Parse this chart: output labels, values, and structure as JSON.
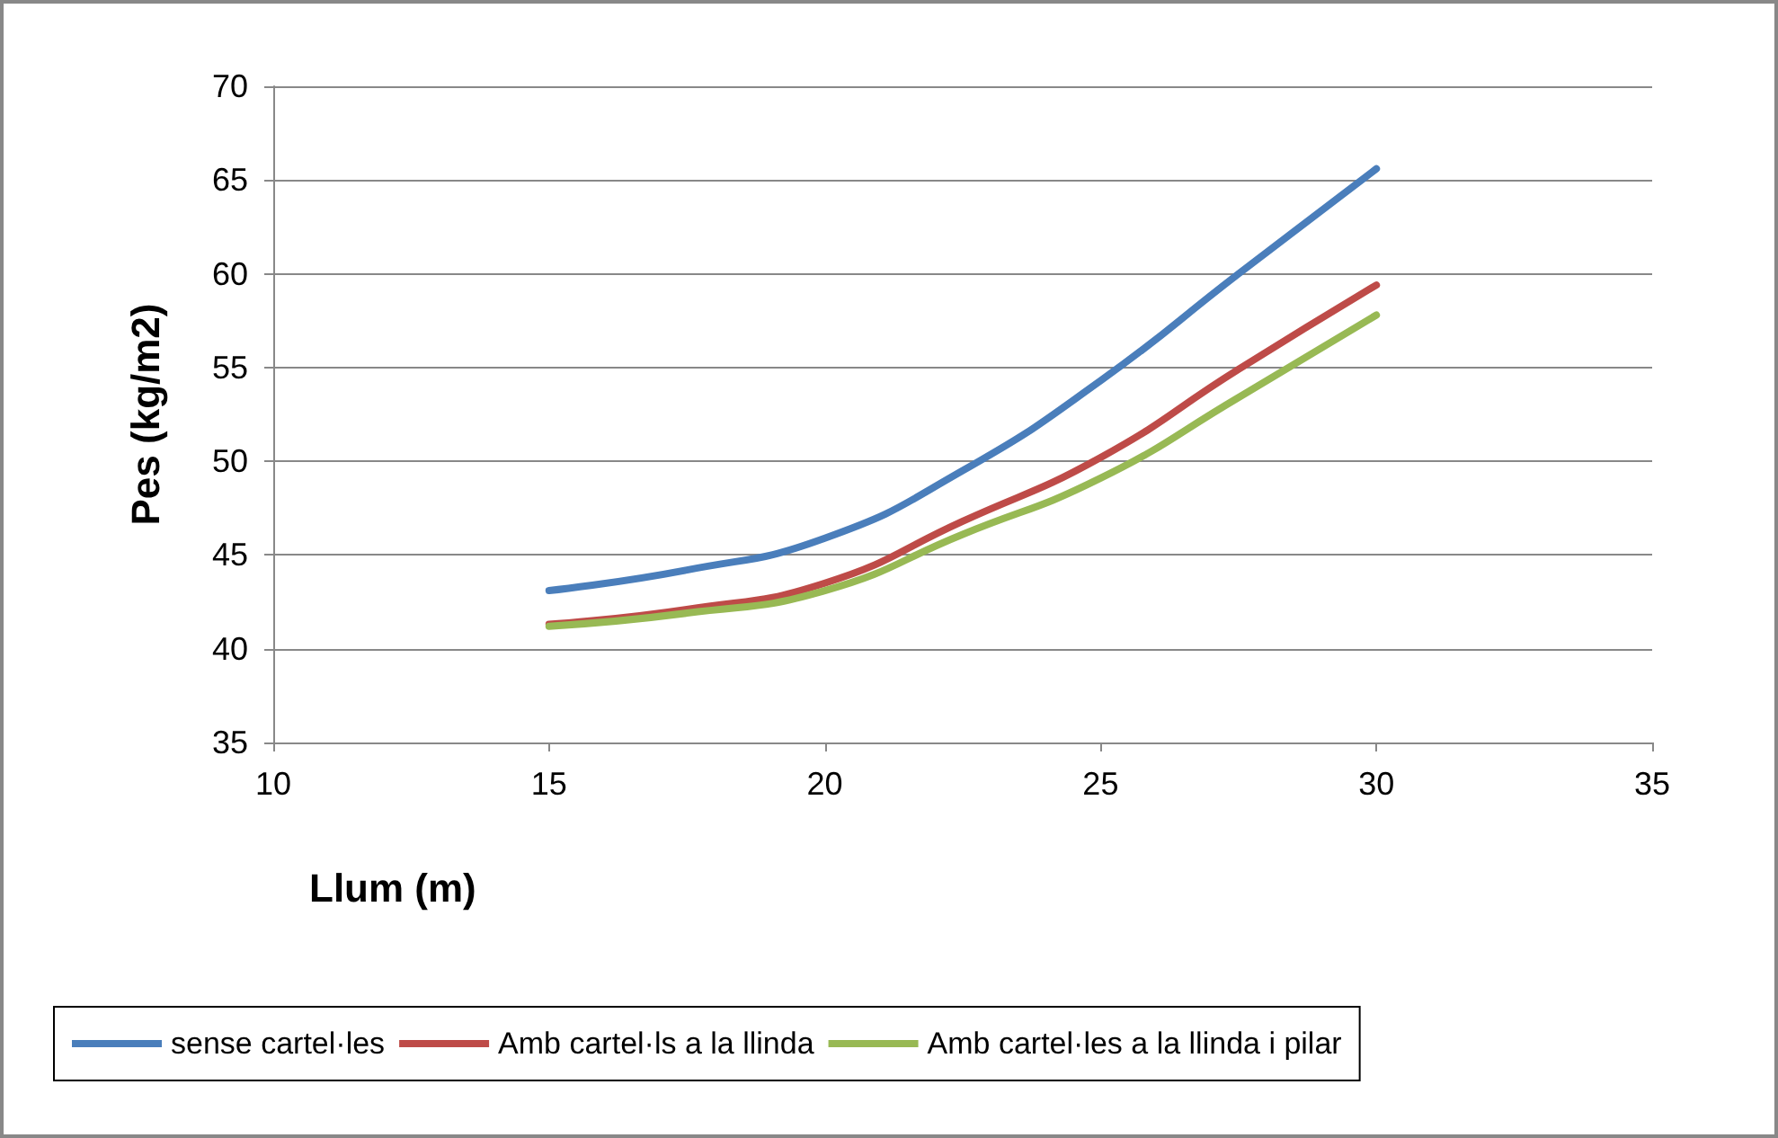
{
  "chart_data": {
    "type": "line",
    "xlabel": "Llum (m)",
    "ylabel": "Pes (kg/m2)",
    "x": [
      15,
      17.5,
      20,
      22.5,
      25,
      27.5,
      30
    ],
    "series": [
      {
        "name": "sense cartel·les",
        "color": "#4a7ebb",
        "values": [
          43.1,
          44.2,
          45.9,
          49.5,
          54.3,
          60.0,
          65.6
        ]
      },
      {
        "name": "Amb cartel·ls a la llinda",
        "color": "#be4b48",
        "values": [
          41.3,
          42.1,
          43.5,
          46.8,
          50.2,
          54.9,
          59.4
        ]
      },
      {
        "name": "Amb cartel·les a la llinda i pilar",
        "color": "#98b954",
        "values": [
          41.2,
          41.9,
          43.1,
          46.1,
          49.1,
          53.4,
          57.8
        ]
      }
    ],
    "xlim": [
      10,
      35
    ],
    "xticks": [
      10,
      15,
      20,
      25,
      30,
      35
    ],
    "ylim": [
      35,
      70
    ],
    "yticks": [
      35,
      40,
      45,
      50,
      55,
      60,
      65,
      70
    ],
    "grid": "y",
    "legend": "bottom",
    "marker": "none",
    "line_style": "solid"
  }
}
